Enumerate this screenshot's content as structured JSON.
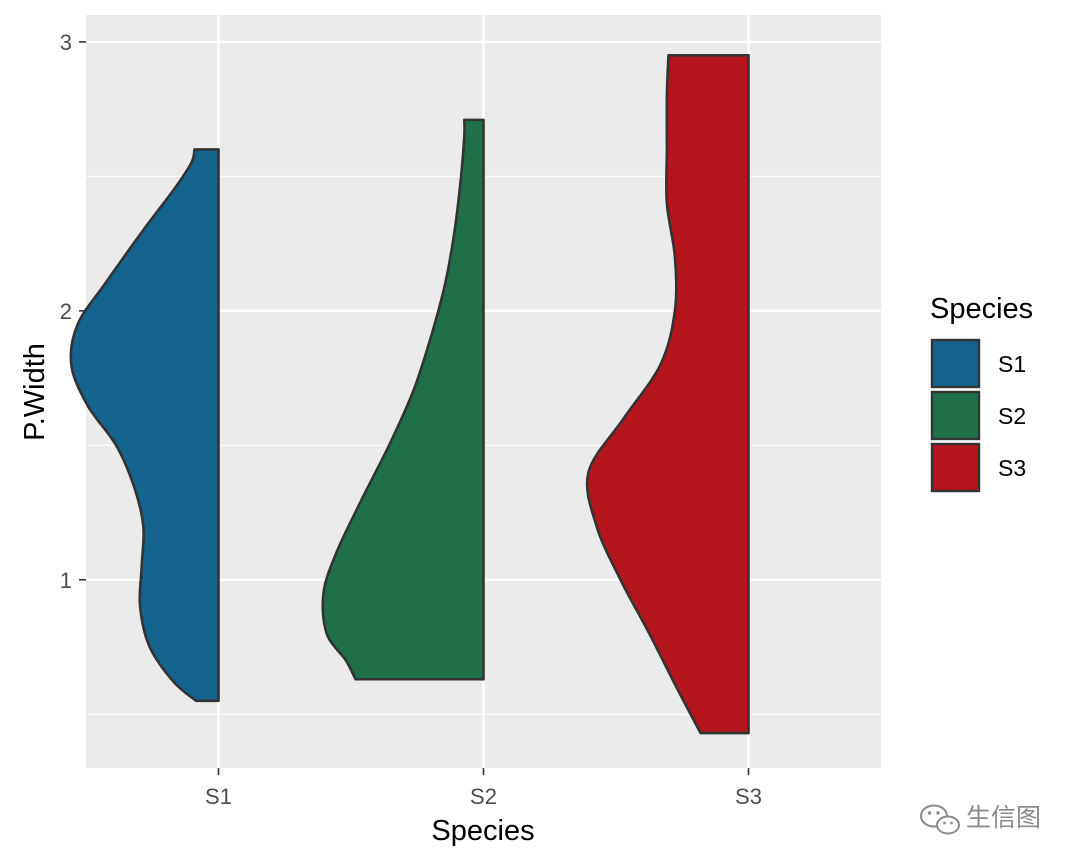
{
  "chart_data": {
    "type": "half-violin",
    "xlabel": "Species",
    "ylabel": "P.Width",
    "categories": [
      "S1",
      "S2",
      "S3"
    ],
    "y_ticks": [
      "1",
      "2",
      "3"
    ],
    "ylim": [
      0.3,
      3.1
    ],
    "grid": true,
    "legend": {
      "title": "Species",
      "position": "right",
      "entries": [
        "S1",
        "S2",
        "S3"
      ]
    },
    "series": [
      {
        "category": "S1",
        "color": "#15638f",
        "y_min": 0.55,
        "y_max": 2.6,
        "density_profile": [
          [
            0.55,
            0.14
          ],
          [
            0.62,
            0.28
          ],
          [
            0.75,
            0.43
          ],
          [
            0.9,
            0.49
          ],
          [
            1.05,
            0.48
          ],
          [
            1.2,
            0.47
          ],
          [
            1.35,
            0.53
          ],
          [
            1.5,
            0.64
          ],
          [
            1.65,
            0.82
          ],
          [
            1.8,
            0.92
          ],
          [
            1.95,
            0.88
          ],
          [
            2.1,
            0.71
          ],
          [
            2.3,
            0.47
          ],
          [
            2.45,
            0.28
          ],
          [
            2.55,
            0.17
          ],
          [
            2.6,
            0.15
          ]
        ]
      },
      {
        "category": "S2",
        "color": "#1f7048",
        "y_min": 0.63,
        "y_max": 2.71,
        "density_profile": [
          [
            0.63,
            0.8
          ],
          [
            0.7,
            0.86
          ],
          [
            0.8,
            0.98
          ],
          [
            0.95,
            1.0
          ],
          [
            1.1,
            0.92
          ],
          [
            1.3,
            0.76
          ],
          [
            1.5,
            0.59
          ],
          [
            1.7,
            0.44
          ],
          [
            1.9,
            0.33
          ],
          [
            2.1,
            0.24
          ],
          [
            2.3,
            0.18
          ],
          [
            2.5,
            0.14
          ],
          [
            2.65,
            0.12
          ],
          [
            2.71,
            0.12
          ]
        ]
      },
      {
        "category": "S3",
        "color": "#b4151c",
        "y_min": 0.43,
        "y_max": 2.95,
        "density_profile": [
          [
            0.43,
            0.3
          ],
          [
            0.6,
            0.45
          ],
          [
            0.8,
            0.62
          ],
          [
            1.0,
            0.8
          ],
          [
            1.2,
            0.95
          ],
          [
            1.4,
            1.0
          ],
          [
            1.6,
            0.78
          ],
          [
            1.8,
            0.55
          ],
          [
            2.0,
            0.46
          ],
          [
            2.2,
            0.46
          ],
          [
            2.4,
            0.51
          ],
          [
            2.6,
            0.51
          ],
          [
            2.8,
            0.51
          ],
          [
            2.95,
            0.5
          ]
        ]
      }
    ]
  },
  "watermark": {
    "text": "生信图",
    "icon": "wechat-icon"
  }
}
